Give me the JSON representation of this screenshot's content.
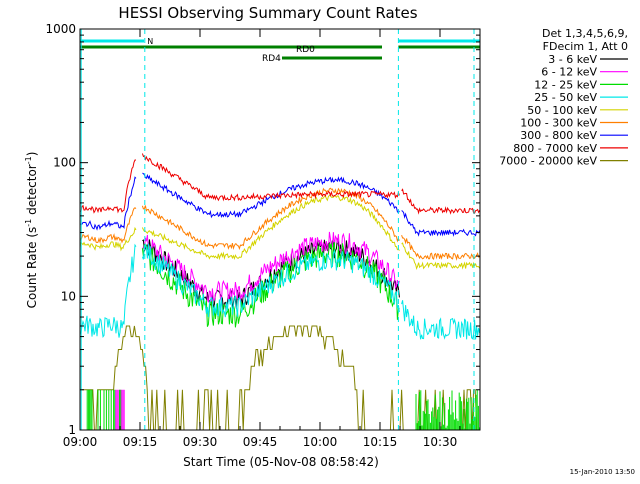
{
  "chart_data": {
    "type": "line",
    "title": "HESSI Observing Summary Count Rates",
    "xlabel": "Start Time (05-Nov-08 08:58:42)",
    "ylabel_main": "Count Rate (s",
    "ylabel_sup1": "-1",
    "ylabel_mid": " detector",
    "ylabel_sup2": "-1",
    "ylabel_end": ")",
    "y_scale": "log",
    "ylim": [
      1,
      1000
    ],
    "xlim_minutes": [
      0,
      100
    ],
    "x_ticks": [
      "09:00",
      "09:15",
      "09:30",
      "09:45",
      "10:00",
      "10:15",
      "10:30"
    ],
    "y_ticks": [
      "1",
      "10",
      "100",
      "1000"
    ],
    "legend_header": [
      "Det 1,3,4,5,6,9,",
      "FDecim 1, Att 0"
    ],
    "legend_position": "right",
    "footer_date": "15-Jan-2010 13:50",
    "series": [
      {
        "name": "3 - 6 keV",
        "color": "#000000"
      },
      {
        "name": "6 - 12 keV",
        "color": "#ff00ff"
      },
      {
        "name": "12 - 25 keV",
        "color": "#00dd00"
      },
      {
        "name": "25 - 50 keV",
        "color": "#00e8e8"
      },
      {
        "name": "50 - 100 keV",
        "color": "#d4d400"
      },
      {
        "name": "100 - 300 keV",
        "color": "#ff7f00"
      },
      {
        "name": "300 - 800 keV",
        "color": "#0000ff"
      },
      {
        "name": "800 - 7000 keV",
        "color": "#ee0000"
      },
      {
        "name": "7000 - 20000 keV",
        "color": "#808000"
      }
    ],
    "annotations": {
      "night": {
        "label": "N",
        "color": "#00e8e8"
      },
      "rd0": {
        "label": "RD0",
        "color": "#008000"
      },
      "rd4": {
        "label": "RD4",
        "color": "#008000"
      }
    }
  }
}
